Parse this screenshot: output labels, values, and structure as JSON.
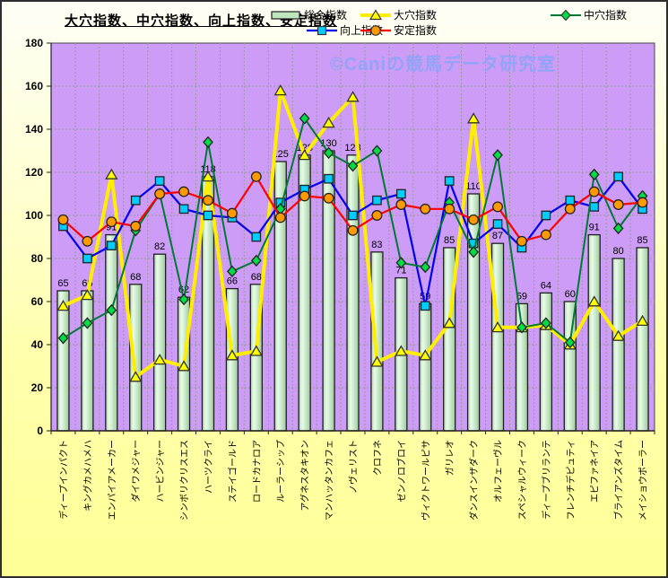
{
  "title": "大穴指数、中穴指数、向上指数、安定指数",
  "watermark": "©Caniの競馬データ研究室",
  "colors": {
    "plot_background": "#cc9cf6",
    "gridline": "#9a9a9a",
    "bar_fill_light": "#eafbea",
    "bar_fill_dark": "#a9d6a9",
    "axis": "#222222"
  },
  "chart_data": {
    "type": "bar",
    "title": "大穴指数、中穴指数、向上指数、安定指数",
    "categories": [
      "ディープインパクト",
      "キングカメハメハ",
      "エンパイアメーカー",
      "ダイワメジャー",
      "ハービンジャー",
      "シンボリクリスエス",
      "ハーツクライ",
      "ステイゴールド",
      "ロードカナロア",
      "ルーラーシップ",
      "アグネスタキオン",
      "マンハッタンカフェ",
      "ノヴェリスト",
      "クロフネ",
      "ゼンノロブロイ",
      "ヴィクトワールピサ",
      "ガリレオ",
      "ダンスインザダーク",
      "オルフェーヴル",
      "スペシャルウィーク",
      "ディープブリランテ",
      "フレンチデピュティ",
      "エピファネイア",
      "ブライアンズタイム",
      "メイショウボーラー"
    ],
    "series": [
      {
        "name": "総合指数",
        "type": "bar",
        "marker": "bar-swatch",
        "line_color": "#1f1f1f",
        "marker_color": "#cceecc",
        "values": [
          65,
          65,
          91,
          68,
          82,
          62,
          118,
          66,
          68,
          125,
          128,
          130,
          128,
          83,
          71,
          59,
          85,
          110,
          87,
          59,
          64,
          60,
          91,
          80,
          85
        ],
        "data_labels": true
      },
      {
        "name": "大穴指数",
        "type": "line",
        "marker": "triangle",
        "line_color": "#ffee00",
        "marker_color": "#ffff00",
        "line_width": 4,
        "values": [
          58,
          63,
          119,
          25,
          33,
          30,
          118,
          35,
          37,
          158,
          128,
          143,
          155,
          32,
          37,
          35,
          50,
          145,
          48,
          48,
          49,
          40,
          60,
          44,
          51
        ]
      },
      {
        "name": "向上指数",
        "type": "line",
        "marker": "square",
        "line_color": "#0000ee",
        "marker_color": "#00ccff",
        "line_width": 2.2,
        "values": [
          95,
          80,
          86,
          107,
          116,
          103,
          100,
          99,
          90,
          106,
          112,
          117,
          100,
          107,
          110,
          58,
          116,
          87,
          96,
          85,
          100,
          107,
          104,
          118,
          103
        ]
      },
      {
        "name": "中穴指数",
        "type": "line",
        "marker": "diamond",
        "line_color": "#007a33",
        "marker_color": "#00dd44",
        "line_width": 2,
        "values": [
          43,
          50,
          56,
          93,
          110,
          61,
          134,
          74,
          79,
          103,
          145,
          129,
          123,
          130,
          78,
          76,
          106,
          83,
          128,
          48,
          50,
          41,
          119,
          94,
          109
        ]
      },
      {
        "name": "安定指数",
        "type": "line",
        "marker": "circle",
        "line_color": "#ff0000",
        "marker_color": "#ff9900",
        "line_width": 2.2,
        "values": [
          98,
          88,
          97,
          95,
          110,
          111,
          107,
          101,
          118,
          99,
          109,
          108,
          93,
          100,
          105,
          103,
          103,
          98,
          104,
          88,
          91,
          103,
          111,
          105,
          106
        ]
      }
    ],
    "ylim": [
      0,
      180
    ],
    "ytick_step": 20,
    "grid": true,
    "legend_position": "top-right",
    "legend_rows": [
      [
        "総合指数",
        "大穴指数",
        "中穴指数"
      ],
      [
        "向上指数",
        "安定指数"
      ]
    ]
  }
}
